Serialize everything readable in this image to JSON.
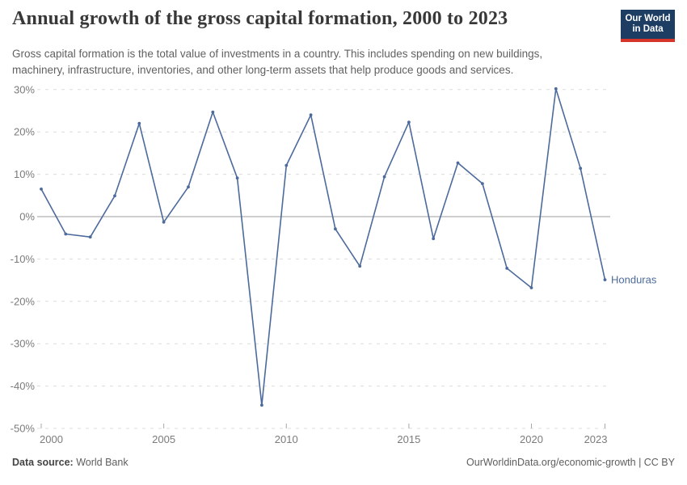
{
  "header": {
    "title": "Annual growth of the gross capital formation, 2000 to 2023",
    "subtitle_line1": "Gross capital formation is the total value of investments in a country. This includes spending on new buildings,",
    "subtitle_line2": "machinery, infrastructure, inventories, and other long-term assets that help produce goods and services."
  },
  "logo": {
    "line1": "Our World",
    "line2": "in Data",
    "bg_color": "#1d3d63",
    "accent_color": "#d8352a"
  },
  "chart_data": {
    "type": "line",
    "title": "Annual growth of the gross capital formation, 2000 to 2023",
    "entity_label": "Honduras",
    "unit": "%",
    "x": [
      2000,
      2001,
      2002,
      2003,
      2004,
      2005,
      2006,
      2007,
      2008,
      2009,
      2010,
      2011,
      2012,
      2013,
      2014,
      2015,
      2016,
      2017,
      2018,
      2019,
      2020,
      2021,
      2022,
      2023
    ],
    "values": [
      6.5,
      -4.1,
      -4.8,
      4.9,
      22.0,
      -1.3,
      7.0,
      24.7,
      9.1,
      -44.5,
      12.1,
      24.0,
      -2.9,
      -11.7,
      9.4,
      22.3,
      -5.2,
      12.7,
      7.8,
      -12.2,
      -16.8,
      30.2,
      11.4,
      -14.9
    ],
    "ylim": [
      -50,
      30
    ],
    "y_ticks": [
      30,
      20,
      10,
      0,
      -10,
      -20,
      -30,
      -40,
      -50
    ],
    "y_tick_suffix": "%",
    "x_ticks": [
      2000,
      2005,
      2010,
      2015,
      2020,
      2023
    ],
    "grid": "horizontal dashed, solid zero line",
    "legend_position": "label at end of line",
    "line_color": "#4C6A9C"
  },
  "footer": {
    "datasource_label": "Data source:",
    "datasource_value": " World Bank",
    "attribution": "OurWorldinData.org/economic-growth | CC BY"
  }
}
